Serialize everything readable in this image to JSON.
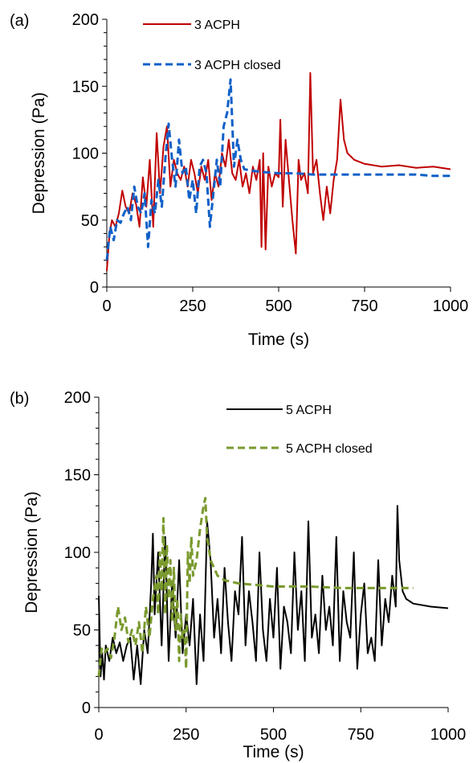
{
  "chart_data": [
    {
      "type": "line",
      "panel_label": "(a)",
      "xlabel": "Time (s)",
      "ylabel": "Depression (Pa)",
      "xlim": [
        0,
        1000
      ],
      "ylim": [
        0,
        200
      ],
      "xticks": [
        "0",
        "250",
        "500",
        "750",
        "1000"
      ],
      "yticks": [
        "0",
        "50",
        "100",
        "150",
        "200"
      ],
      "legend_position": "top-center",
      "series": [
        {
          "name": "3 ACPH",
          "color": "#c00000",
          "dash": "solid",
          "x": [
            0,
            8,
            15,
            25,
            35,
            45,
            55,
            65,
            75,
            85,
            95,
            105,
            115,
            125,
            135,
            145,
            155,
            165,
            175,
            185,
            195,
            205,
            215,
            225,
            235,
            245,
            255,
            265,
            275,
            285,
            295,
            305,
            315,
            325,
            335,
            345,
            355,
            365,
            375,
            385,
            395,
            405,
            415,
            425,
            435,
            445,
            450,
            455,
            462,
            470,
            480,
            490,
            500,
            505,
            512,
            520,
            530,
            540,
            550,
            558,
            565,
            575,
            585,
            592,
            600,
            610,
            620,
            630,
            640,
            650,
            660,
            670,
            680,
            690,
            700,
            720,
            750,
            800,
            850,
            900,
            950,
            1000
          ],
          "y": [
            12,
            40,
            50,
            45,
            55,
            72,
            60,
            55,
            70,
            62,
            45,
            82,
            60,
            95,
            45,
            115,
            70,
            105,
            120,
            75,
            95,
            85,
            80,
            90,
            75,
            95,
            85,
            70,
            90,
            80,
            95,
            65,
            85,
            75,
            100,
            90,
            110,
            85,
            80,
            95,
            75,
            85,
            70,
            90,
            80,
            95,
            30,
            100,
            28,
            90,
            75,
            85,
            82,
            125,
            60,
            110,
            80,
            50,
            25,
            95,
            80,
            85,
            70,
            160,
            85,
            95,
            70,
            50,
            75,
            55,
            80,
            95,
            140,
            110,
            100,
            95,
            92,
            90,
            91,
            89,
            90,
            88
          ]
        },
        {
          "name": "3 ACPH closed",
          "color": "#1060c8",
          "dash": "dashed",
          "x": [
            0,
            10,
            20,
            30,
            40,
            50,
            60,
            70,
            80,
            90,
            100,
            110,
            120,
            130,
            140,
            150,
            160,
            170,
            180,
            190,
            200,
            210,
            220,
            230,
            240,
            250,
            260,
            270,
            280,
            290,
            300,
            310,
            320,
            330,
            340,
            350,
            360,
            370,
            380,
            390,
            400,
            420,
            450,
            500,
            550,
            600,
            650,
            700,
            750,
            800,
            850,
            900,
            950,
            1000
          ],
          "y": [
            20,
            45,
            35,
            50,
            48,
            55,
            60,
            50,
            75,
            60,
            55,
            70,
            30,
            65,
            55,
            80,
            60,
            95,
            122,
            95,
            75,
            110,
            85,
            90,
            65,
            80,
            55,
            90,
            95,
            85,
            45,
            70,
            95,
            75,
            120,
            130,
            155,
            90,
            110,
            95,
            88,
            87,
            86,
            85,
            85,
            84,
            84,
            84,
            84,
            84,
            84,
            84,
            83,
            83
          ]
        }
      ]
    },
    {
      "type": "line",
      "panel_label": "(b)",
      "xlabel": "Time (s)",
      "ylabel": "Depression (Pa)",
      "xlim": [
        0,
        1000
      ],
      "ylim": [
        0,
        200
      ],
      "xticks": [
        "0",
        "250",
        "500",
        "750",
        "1000"
      ],
      "yticks": [
        "0",
        "50",
        "100",
        "150",
        "200"
      ],
      "legend_position": "top-center",
      "series": [
        {
          "name": "5 ACPH",
          "color": "#000000",
          "dash": "solid",
          "x": [
            0,
            5,
            10,
            15,
            20,
            30,
            40,
            50,
            60,
            70,
            80,
            90,
            100,
            110,
            120,
            130,
            140,
            150,
            155,
            160,
            170,
            180,
            190,
            200,
            210,
            220,
            230,
            240,
            250,
            260,
            270,
            280,
            290,
            300,
            310,
            320,
            330,
            340,
            350,
            360,
            370,
            380,
            390,
            400,
            410,
            420,
            430,
            440,
            450,
            460,
            470,
            480,
            490,
            500,
            510,
            520,
            530,
            540,
            550,
            560,
            570,
            580,
            590,
            600,
            610,
            620,
            630,
            640,
            650,
            660,
            670,
            680,
            690,
            700,
            710,
            720,
            730,
            740,
            750,
            760,
            770,
            780,
            790,
            800,
            810,
            820,
            830,
            840,
            850,
            855,
            860,
            870,
            880,
            900,
            950,
            1000
          ],
          "y": [
            72,
            20,
            35,
            18,
            40,
            30,
            45,
            35,
            42,
            30,
            40,
            45,
            18,
            40,
            15,
            50,
            35,
            80,
            112,
            60,
            100,
            40,
            110,
            30,
            80,
            45,
            95,
            35,
            60,
            40,
            70,
            15,
            60,
            30,
            120,
            95,
            45,
            70,
            35,
            90,
            55,
            30,
            75,
            60,
            110,
            40,
            75,
            55,
            30,
            100,
            50,
            30,
            70,
            45,
            90,
            25,
            65,
            55,
            35,
            100,
            50,
            75,
            30,
            120,
            45,
            60,
            35,
            85,
            50,
            65,
            40,
            110,
            30,
            75,
            55,
            45,
            100,
            25,
            60,
            80,
            35,
            45,
            30,
            95,
            40,
            70,
            55,
            85,
            65,
            130,
            95,
            75,
            70,
            67,
            65,
            64
          ]
        },
        {
          "name": "5 ACPH closed",
          "color": "#7a9a2e",
          "dash": "dashed",
          "x": [
            0,
            8,
            15,
            25,
            35,
            45,
            55,
            65,
            75,
            85,
            95,
            105,
            115,
            125,
            135,
            145,
            155,
            165,
            170,
            175,
            180,
            185,
            190,
            195,
            200,
            205,
            210,
            215,
            220,
            225,
            230,
            235,
            240,
            245,
            250,
            255,
            260,
            265,
            270,
            280,
            290,
            300,
            305,
            310,
            320,
            340,
            360,
            400,
            450,
            500,
            600,
            700,
            800,
            850,
            900
          ],
          "y": [
            20,
            38,
            35,
            38,
            32,
            45,
            65,
            50,
            58,
            42,
            50,
            40,
            55,
            35,
            65,
            45,
            70,
            85,
            60,
            100,
            75,
            122,
            60,
            105,
            70,
            95,
            55,
            90,
            50,
            70,
            30,
            60,
            45,
            50,
            25,
            100,
            80,
            110,
            85,
            95,
            115,
            130,
            135,
            110,
            95,
            85,
            82,
            80,
            79,
            78,
            78,
            77,
            77,
            77,
            77
          ]
        }
      ]
    }
  ]
}
